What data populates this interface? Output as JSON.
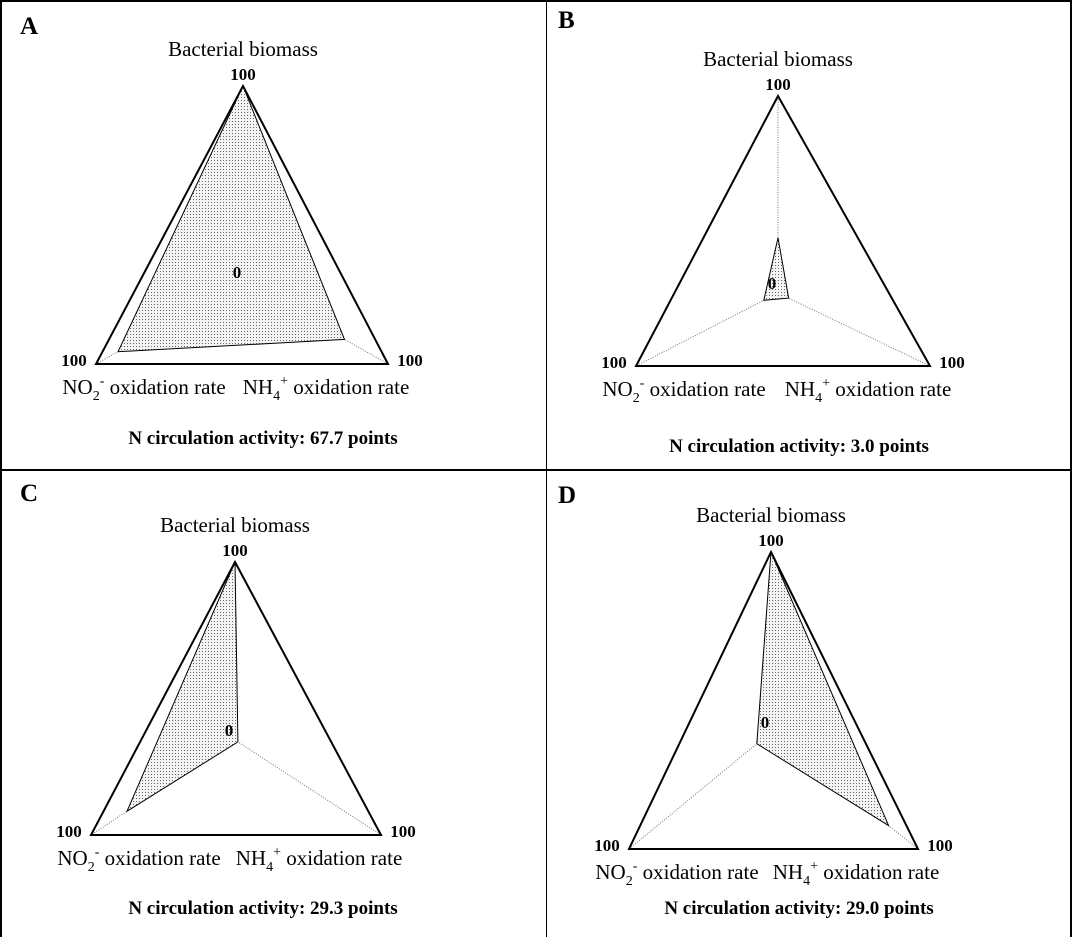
{
  "chart_data": [
    {
      "type": "radar",
      "panel_label": "A",
      "axes": [
        "Bacterial biomass",
        "NH4+ oxidation rate",
        "NO2- oxidation rate"
      ],
      "range": [
        0,
        100
      ],
      "values": [
        100,
        70,
        85
      ],
      "tick_min": "0",
      "tick_max": "100",
      "labels": {
        "top": "Bacterial biomass",
        "left_main": "NO",
        "left_sub": "2",
        "left_sup": "-",
        "left_rest": " oxidation rate",
        "right_main": "NH",
        "right_sub": "4",
        "right_sup": "+",
        "right_rest": " oxidation rate"
      },
      "summary": "N circulation activity: 67.7 points"
    },
    {
      "type": "radar",
      "panel_label": "B",
      "axes": [
        "Bacterial biomass",
        "NH4+ oxidation rate",
        "NO2- oxidation rate"
      ],
      "range": [
        0,
        100
      ],
      "values": [
        28,
        7,
        10
      ],
      "tick_min": "0",
      "tick_max": "100",
      "labels": {
        "top": "Bacterial biomass",
        "left_main": "NO",
        "left_sub": "2",
        "left_sup": "-",
        "left_rest": " oxidation rate",
        "right_main": "NH",
        "right_sub": "4",
        "right_sup": "+",
        "right_rest": " oxidation rate"
      },
      "summary": "N circulation activity: 3.0 points"
    },
    {
      "type": "radar",
      "panel_label": "C",
      "axes": [
        "Bacterial biomass",
        "NH4+ oxidation rate",
        "NO2- oxidation rate"
      ],
      "range": [
        0,
        100
      ],
      "values": [
        100,
        2,
        75
      ],
      "tick_min": "0",
      "tick_max": "100",
      "labels": {
        "top": "Bacterial biomass",
        "left_main": "NO",
        "left_sub": "2",
        "left_sup": "-",
        "left_rest": " oxidation rate",
        "right_main": "NH",
        "right_sub": "4",
        "right_sup": "+",
        "right_rest": " oxidation rate"
      },
      "summary": "N circulation activity: 29.3 points"
    },
    {
      "type": "radar",
      "panel_label": "D",
      "axes": [
        "Bacterial biomass",
        "NH4+ oxidation rate",
        "NO2- oxidation rate"
      ],
      "range": [
        0,
        100
      ],
      "values": [
        100,
        80,
        10
      ],
      "tick_min": "0",
      "tick_max": "100",
      "labels": {
        "top": "Bacterial biomass",
        "left_main": "NO",
        "left_sub": "2",
        "left_sup": "-",
        "left_rest": " oxidation rate",
        "right_main": "NH",
        "right_sub": "4",
        "right_sup": "+",
        "right_rest": " oxidation rate"
      },
      "summary": "N circulation activity: 29.0 points"
    }
  ]
}
